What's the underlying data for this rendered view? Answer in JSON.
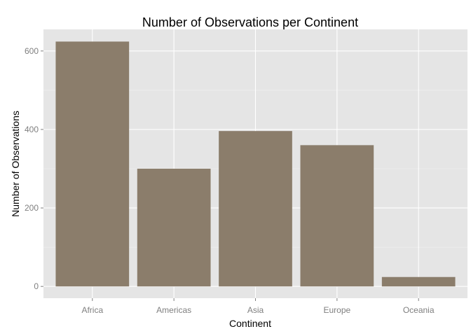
{
  "chart_data": {
    "type": "bar",
    "title": "Number of Observations per Continent",
    "xlabel": "Continent",
    "ylabel": "Number of Observations",
    "categories": [
      "Africa",
      "Americas",
      "Asia",
      "Europe",
      "Oceania"
    ],
    "values": [
      624,
      300,
      396,
      360,
      24
    ],
    "ylim": [
      -30,
      655
    ],
    "yticks": [
      0,
      200,
      400,
      600
    ],
    "ytick_labels": [
      "0",
      "200",
      "400",
      "600"
    ],
    "grid": true,
    "legend": "none",
    "colors": {
      "bar": "#8b7d6b",
      "panel": "#e5e5e5"
    }
  }
}
